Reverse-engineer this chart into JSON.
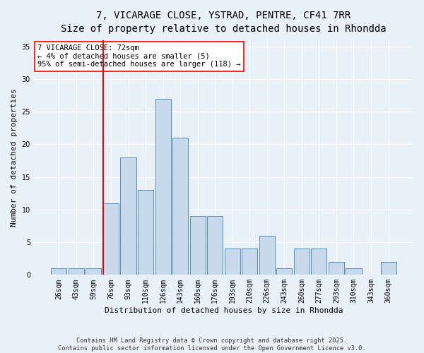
{
  "title_line1": "7, VICARAGE CLOSE, YSTRAD, PENTRE, CF41 7RR",
  "title_line2": "Size of property relative to detached houses in Rhondda",
  "xlabel": "Distribution of detached houses by size in Rhondda",
  "ylabel": "Number of detached properties",
  "categories": [
    "26sqm",
    "43sqm",
    "59sqm",
    "76sqm",
    "93sqm",
    "110sqm",
    "126sqm",
    "143sqm",
    "160sqm",
    "176sqm",
    "193sqm",
    "210sqm",
    "226sqm",
    "243sqm",
    "260sqm",
    "277sqm",
    "293sqm",
    "310sqm",
    "343sqm",
    "360sqm"
  ],
  "values": [
    1,
    1,
    1,
    11,
    18,
    13,
    27,
    21,
    9,
    9,
    4,
    4,
    6,
    1,
    4,
    4,
    2,
    1,
    0,
    2
  ],
  "bar_color": "#c9d9ec",
  "bar_edge_color": "#5b8db8",
  "vline_x": 3.5,
  "vline_color": "red",
  "annotation_text": "7 VICARAGE CLOSE: 72sqm\n← 4% of detached houses are smaller (5)\n95% of semi-detached houses are larger (118) →",
  "annotation_box_color": "white",
  "annotation_box_edge_color": "red",
  "ylim": [
    0,
    36
  ],
  "yticks": [
    0,
    5,
    10,
    15,
    20,
    25,
    30,
    35
  ],
  "bg_color": "#e8f0f8",
  "plot_bg_color": "#e8f0f8",
  "footer": "Contains HM Land Registry data © Crown copyright and database right 2025.\nContains public sector information licensed under the Open Government Licence v3.0.",
  "title_fontsize": 10,
  "subtitle_fontsize": 9,
  "tick_fontsize": 7,
  "label_fontsize": 8,
  "ann_fontsize": 7.5
}
